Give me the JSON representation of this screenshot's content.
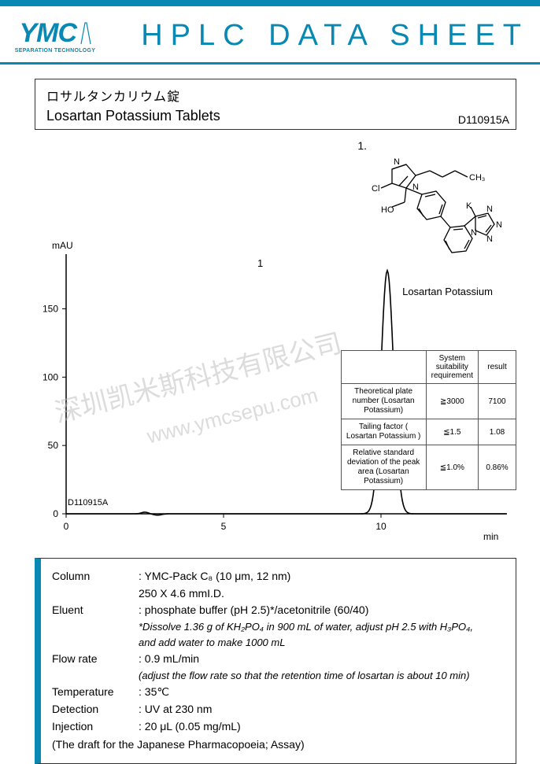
{
  "header": {
    "logo_text": "YMC",
    "logo_sub": "SEPARATION TECHNOLOGY",
    "title": "HPLC DATA SHEET"
  },
  "title_box": {
    "jp": "ロサルタンカリウム錠",
    "en": "Losartan Potassium Tablets",
    "doc_id": "D110915A"
  },
  "structure": {
    "label_num": "1.",
    "caption": "Losartan Potassium"
  },
  "chart": {
    "y_unit": "mAU",
    "x_unit": "min",
    "peak_label": "1",
    "id_label": "D110915A",
    "y_ticks": [
      0,
      50,
      100,
      150
    ],
    "y_lim": [
      0,
      190
    ],
    "x_ticks": [
      0,
      5,
      10
    ],
    "x_lim": [
      0,
      14
    ],
    "peak_x": 10.2,
    "peak_height": 178,
    "peak_halfwidth": 0.28,
    "line_color": "#000000",
    "axis_color": "#000000",
    "background": "#ffffff"
  },
  "suitability": {
    "headers": {
      "blank": "",
      "req": "System suitability requirement",
      "res": "result"
    },
    "rows": [
      {
        "label": "Theoretical plate number (Losartan Potassium)",
        "req": "≧3000",
        "res": "7100"
      },
      {
        "label": "Tailing factor ( Losartan Potassium )",
        "req": "≦1.5",
        "res": "1.08"
      },
      {
        "label": "Relative standard deviation of the peak area (Losartan Potassium)",
        "req": "≦1.0%",
        "res": "0.86%"
      }
    ]
  },
  "conditions": {
    "column": {
      "label": "Column",
      "line1": ": YMC-Pack C₈ (10 μm, 12 nm)",
      "line2": "  250 X 4.6 mmI.D."
    },
    "eluent": {
      "label": "Eluent",
      "line1": ": phosphate buffer (pH 2.5)*/acetonitrile (60/40)",
      "note1": "*Dissolve 1.36 g of KH₂PO₄ in 900 mL of water, adjust pH 2.5 with H₃PO₄,",
      "note2": "  and add water to make 1000 mL"
    },
    "flow": {
      "label": "Flow rate",
      "line1": ": 0.9 mL/min",
      "note1": "(adjust the flow rate so that the retention time of losartan is about 10 min)"
    },
    "temp": {
      "label": "Temperature",
      "line1": ": 35℃"
    },
    "detect": {
      "label": "Detection",
      "line1": ": UV at 230 nm"
    },
    "inject": {
      "label": "Injection",
      "line1": ": 20 μL (0.05 mg/mL)"
    },
    "footer": "(The draft for the Japanese Pharmacopoeia; Assay)"
  },
  "watermark": {
    "cn": "深圳凯米斯科技有限公司",
    "url": "www.ymcsepu.com"
  },
  "colors": {
    "brand": "#0888b3",
    "text": "#000000",
    "border": "#333333",
    "watermark": "#bbbbbb"
  }
}
